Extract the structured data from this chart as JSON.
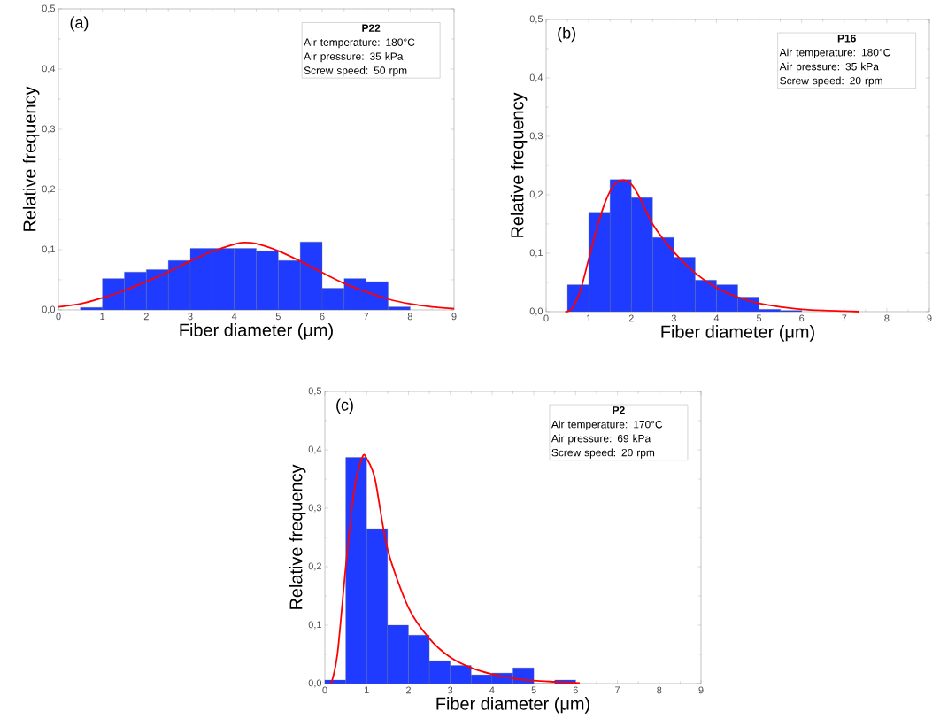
{
  "chart_data": [
    {
      "type": "histogram",
      "xlabel": "Fiber diameter (μm)",
      "ylabel": "Relative frequency",
      "xlim": [
        0,
        9
      ],
      "ylim": [
        0,
        0.5
      ],
      "xticks": [
        0,
        1,
        2,
        3,
        4,
        5,
        6,
        7,
        8,
        9
      ],
      "yticks": [
        {
          "value": 0,
          "label": "0,0"
        },
        {
          "value": 0.1,
          "label": "0,1"
        },
        {
          "value": 0.2,
          "label": "0,2"
        },
        {
          "value": 0.3,
          "label": "0,3"
        },
        {
          "value": 0.4,
          "label": "0,4"
        },
        {
          "value": 0.5,
          "label": "0,5"
        }
      ],
      "annotations": [
        "(a)",
        "P22",
        "Air temperature: 180°C",
        "Air pressure: 35 kPa",
        "Screw speed: 50 rpm"
      ],
      "series": [
        {
          "color": "#1f3bff",
          "bins": [
            0.5,
            1,
            1.5,
            2,
            2.5,
            3,
            3.5,
            4,
            4.5,
            5,
            5.5,
            6,
            6.5,
            7,
            7.5,
            8
          ],
          "values": [
            0.004,
            0.052,
            0.063,
            0.067,
            0.082,
            0.102,
            0.102,
            0.102,
            0.098,
            0.082,
            0.113,
            0.036,
            0.052,
            0.047,
            0.005
          ]
        },
        {
          "type": "line",
          "color": "#ff0000",
          "x": [
            0,
            0.5,
            1,
            1.5,
            2,
            2.5,
            3,
            3.5,
            4,
            4.2,
            4.5,
            5,
            5.5,
            6,
            6.5,
            7,
            7.5,
            8,
            8.5,
            9
          ],
          "values": [
            0.005,
            0.01,
            0.02,
            0.032,
            0.047,
            0.063,
            0.081,
            0.097,
            0.109,
            0.112,
            0.11,
            0.098,
            0.081,
            0.062,
            0.044,
            0.03,
            0.018,
            0.01,
            0.005,
            0.002
          ]
        }
      ]
    },
    {
      "type": "histogram",
      "xlabel": "Fiber diameter (μm)",
      "ylabel": "Relative frequency",
      "xlim": [
        0,
        9
      ],
      "ylim": [
        0,
        0.5
      ],
      "xticks": [
        0,
        1,
        2,
        3,
        4,
        5,
        6,
        7,
        8,
        9
      ],
      "yticks": [
        {
          "value": 0,
          "label": "0,0"
        },
        {
          "value": 0.1,
          "label": "0,1"
        },
        {
          "value": 0.2,
          "label": "0,2"
        },
        {
          "value": 0.3,
          "label": "0,3"
        },
        {
          "value": 0.4,
          "label": "0,4"
        },
        {
          "value": 0.5,
          "label": "0,5"
        }
      ],
      "annotations": [
        "(b)",
        "P16",
        "Air temperature: 180°C",
        "Air pressure: 35 kPa",
        "Screw speed: 20 rpm"
      ],
      "series": [
        {
          "color": "#1f3bff",
          "bins": [
            0.5,
            1,
            1.5,
            2,
            2.5,
            3,
            3.5,
            4,
            4.5,
            5,
            5.5,
            6
          ],
          "values": [
            0.046,
            0.17,
            0.226,
            0.195,
            0.127,
            0.093,
            0.054,
            0.046,
            0.025,
            0.004,
            0.002
          ]
        },
        {
          "type": "line",
          "color": "#ff0000",
          "x": [
            0.45,
            0.6,
            0.8,
            1.0,
            1.2,
            1.4,
            1.6,
            1.8,
            2.0,
            2.2,
            2.5,
            3,
            3.5,
            4,
            4.5,
            5,
            5.5,
            6,
            6.5,
            7,
            7.35
          ],
          "values": [
            0,
            0.005,
            0.035,
            0.09,
            0.145,
            0.19,
            0.217,
            0.225,
            0.218,
            0.195,
            0.15,
            0.102,
            0.066,
            0.041,
            0.025,
            0.014,
            0.008,
            0.004,
            0.002,
            0.001,
            0
          ]
        }
      ]
    },
    {
      "type": "histogram",
      "xlabel": "Fiber diameter (μm)",
      "ylabel": "Relative frequency",
      "xlim": [
        0,
        9
      ],
      "ylim": [
        0,
        0.5
      ],
      "xticks": [
        0,
        1,
        2,
        3,
        4,
        5,
        6,
        7,
        8,
        9
      ],
      "yticks": [
        {
          "value": 0,
          "label": "0,0"
        },
        {
          "value": 0.1,
          "label": "0,1"
        },
        {
          "value": 0.2,
          "label": "0,2"
        },
        {
          "value": 0.3,
          "label": "0,3"
        },
        {
          "value": 0.4,
          "label": "0,4"
        },
        {
          "value": 0.5,
          "label": "0,5"
        }
      ],
      "annotations": [
        "(c)",
        "P2",
        "Air temperature: 170°C",
        "Air pressure: 69 kPa",
        "Screw speed: 20 rpm"
      ],
      "series": [
        {
          "color": "#1f3bff",
          "bins": [
            0,
            0.5,
            1,
            1.5,
            2,
            2.5,
            3,
            3.5,
            4,
            4.5,
            5,
            5.5,
            6
          ],
          "values": [
            0.006,
            0.387,
            0.265,
            0.1,
            0.083,
            0.039,
            0.031,
            0.015,
            0.018,
            0.027,
            0,
            0.006
          ]
        },
        {
          "type": "line",
          "color": "#ff0000",
          "x": [
            0.15,
            0.3,
            0.5,
            0.7,
            0.9,
            1.0,
            1.2,
            1.5,
            2,
            2.5,
            3,
            3.5,
            4,
            4.5,
            5,
            5.5,
            6.1
          ],
          "values": [
            0,
            0.05,
            0.2,
            0.33,
            0.388,
            0.385,
            0.35,
            0.23,
            0.13,
            0.077,
            0.045,
            0.027,
            0.016,
            0.009,
            0.005,
            0.003,
            0.001
          ]
        }
      ]
    }
  ]
}
